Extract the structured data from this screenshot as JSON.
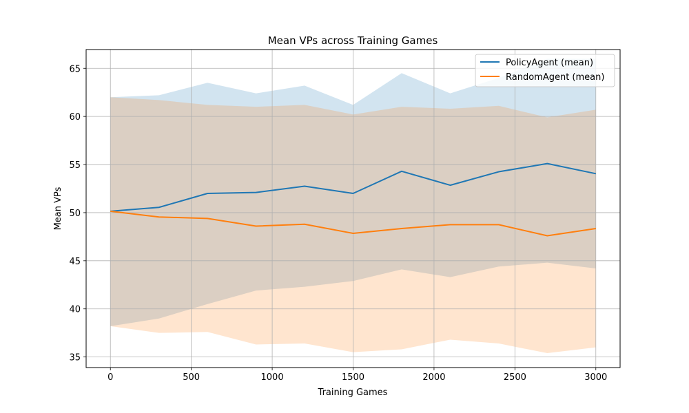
{
  "chart_data": {
    "type": "line",
    "title": "Mean VPs across Training Games",
    "xlabel": "Training Games",
    "ylabel": "Mean VPs",
    "xlim": [
      -150,
      3150
    ],
    "ylim": [
      33.9,
      66.95
    ],
    "grid": true,
    "legend_position": "top-right",
    "x_ticks": [
      0,
      500,
      1000,
      1500,
      2000,
      2500,
      3000
    ],
    "y_ticks": [
      35,
      40,
      45,
      50,
      55,
      60,
      65
    ],
    "x": [
      0,
      300,
      600,
      900,
      1200,
      1500,
      1800,
      2100,
      2400,
      2700,
      3000
    ],
    "series": [
      {
        "name": "PolicyAgent (mean)",
        "color": "#1f77b4",
        "band_color": "#c6dbed",
        "values": [
          50.15,
          50.55,
          52.0,
          52.1,
          52.75,
          52.0,
          54.3,
          52.85,
          54.25,
          55.1,
          54.05
        ],
        "upper": [
          62.0,
          62.2,
          63.5,
          62.4,
          63.2,
          61.2,
          64.5,
          62.4,
          64.0,
          66.0,
          66.0
        ],
        "lower": [
          38.2,
          39.0,
          40.5,
          41.9,
          42.3,
          42.9,
          44.1,
          43.3,
          44.4,
          44.8,
          44.2
        ]
      },
      {
        "name": "RandomAgent (mean)",
        "color": "#ff7f0e",
        "band_color": "#ffdabb",
        "values": [
          50.15,
          49.55,
          49.4,
          48.6,
          48.8,
          47.85,
          48.35,
          48.75,
          48.75,
          47.6,
          48.35
        ],
        "upper": [
          62.0,
          61.7,
          61.2,
          61.0,
          61.2,
          60.2,
          61.0,
          60.8,
          61.1,
          59.9,
          60.7
        ],
        "lower": [
          38.2,
          37.5,
          37.6,
          36.3,
          36.4,
          35.5,
          35.8,
          36.8,
          36.4,
          35.4,
          36.0
        ]
      }
    ],
    "overlap_color": "#d9ccc2"
  }
}
